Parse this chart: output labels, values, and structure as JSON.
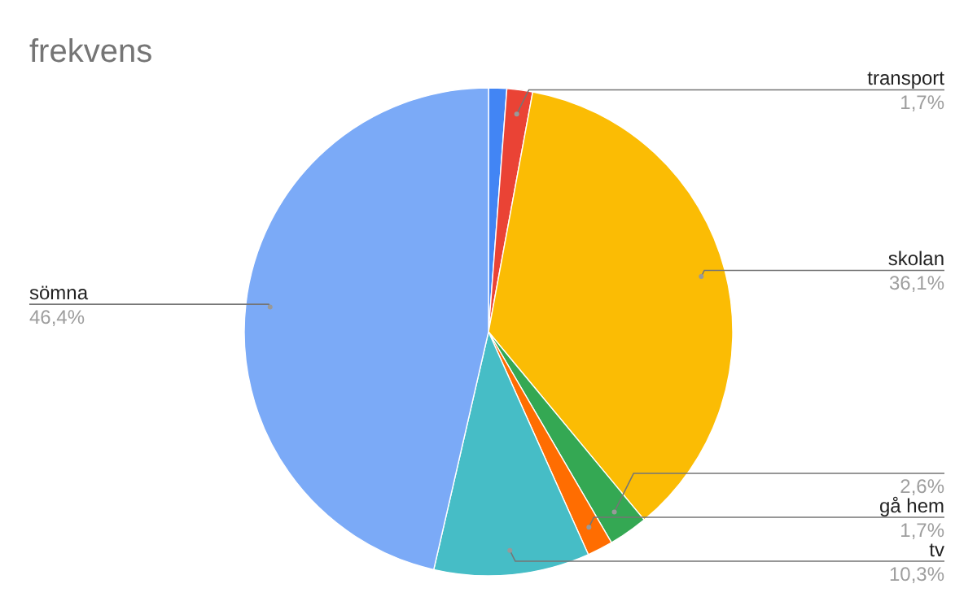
{
  "chart_data": {
    "type": "pie",
    "title": "frekvens",
    "categories": [
      null,
      "transport",
      "skolan",
      null,
      "gå hem",
      "tv",
      "sömna"
    ],
    "values": [
      1.2,
      1.7,
      36.1,
      2.6,
      1.7,
      10.3,
      46.4
    ],
    "value_labels": [
      null,
      "1,7%",
      "36,1%",
      "2,6%",
      "1,7%",
      "10,3%",
      "46,4%"
    ],
    "colors": [
      "#4285f4",
      "#ea4335",
      "#fbbc04",
      "#34a853",
      "#ff6d01",
      "#46bdc6",
      "#7baaf7"
    ]
  }
}
